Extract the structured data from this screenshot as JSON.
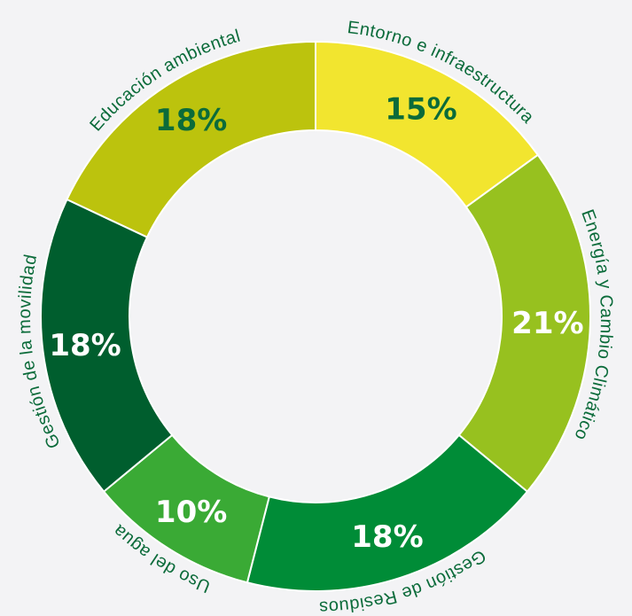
{
  "chart_data": {
    "type": "pie",
    "donut": true,
    "categories": [
      "Entorno e infraestructura",
      "Energía y Cambio Climático",
      "Gestión de Residuos",
      "Uso del agua",
      "Gestión de la movilidad",
      "Educación ambiental"
    ],
    "values": [
      15,
      21,
      18,
      10,
      18,
      18
    ],
    "labels": [
      "15%",
      "21%",
      "18%",
      "10%",
      "18%",
      "18%"
    ],
    "colors": [
      "#f2e52f",
      "#97c11f",
      "#008c37",
      "#3aaa35",
      "#005e2e",
      "#bcc30d"
    ],
    "label_colors": [
      "#0b6b3a",
      "#ffffff",
      "#ffffff",
      "#ffffff",
      "#ffffff",
      "#0b6b3a"
    ],
    "title": "",
    "legend": "none"
  }
}
